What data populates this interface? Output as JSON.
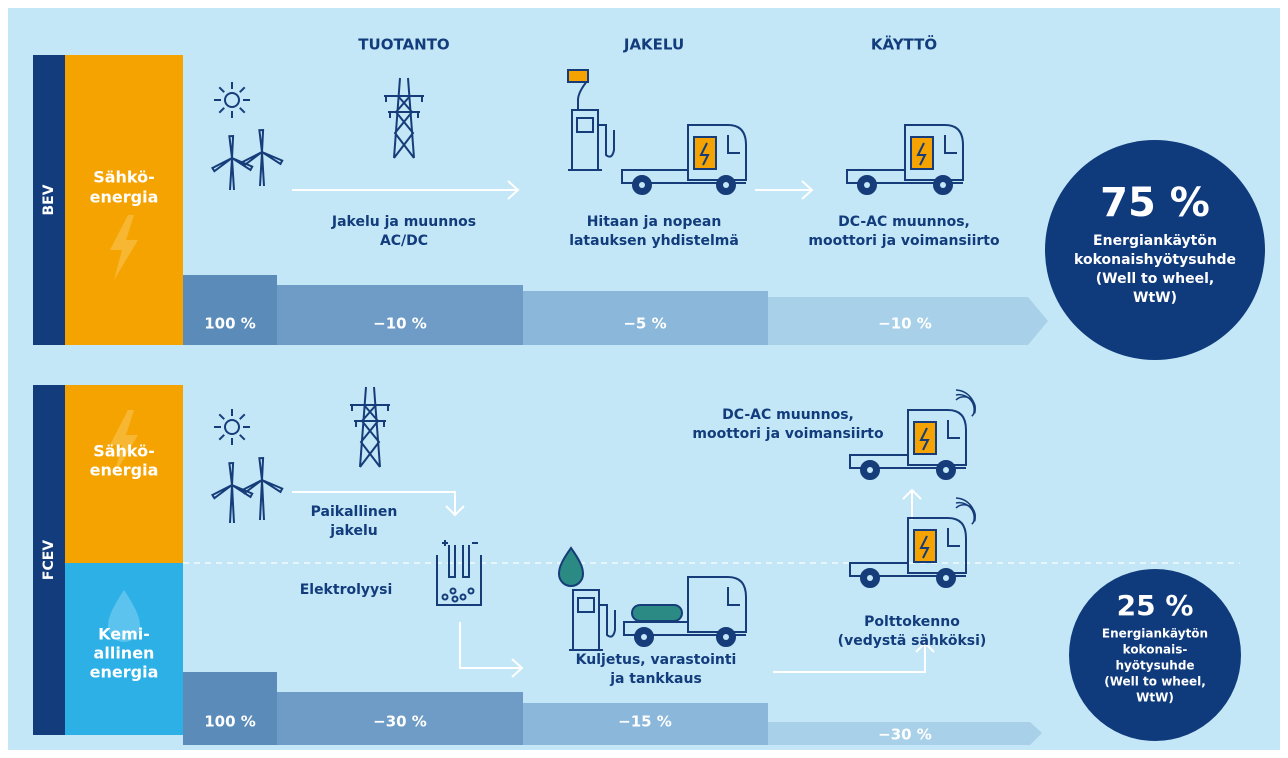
{
  "headers": [
    "TUOTANTO",
    "JAKELU",
    "KÄYTTÖ"
  ],
  "bev": {
    "label": "BEV",
    "source": [
      "Sähkö-",
      "energia"
    ],
    "captions": [
      [
        "Jakelu ja muunnos",
        "AC/DC"
      ],
      [
        "Hitaan ja nopean",
        "latauksen yhdistelmä"
      ],
      [
        "DC-AC muunnos,",
        "moottori ja voimansiirto"
      ]
    ],
    "bars": [
      "100 %",
      "−10 %",
      "−5 %",
      "−10 %"
    ],
    "result": {
      "value": "75 %",
      "text": [
        "Energiankäytön",
        "kokonaishyötysuhde",
        "(Well to wheel,",
        "WtW)"
      ]
    }
  },
  "fcev": {
    "label": "FCEV",
    "sources": [
      [
        "Sähkö-",
        "energia"
      ],
      [
        "Kemi-",
        "allinen",
        "energia"
      ]
    ],
    "captions": {
      "distribution": [
        "Paikallinen",
        "jakelu"
      ],
      "electrolysis": [
        "Elektrolyysi"
      ],
      "transport": [
        "Kuljetus, varastointi",
        "ja tankkaus"
      ],
      "fuelcell": [
        "Polttokenno",
        "(vedystä sähköksi)"
      ],
      "drive": [
        "DC-AC muunnos,",
        "moottori ja voimansiirto"
      ]
    },
    "bars": [
      "100 %",
      "−30 %",
      "−15 %",
      "−30 %"
    ],
    "result": {
      "value": "25 %",
      "text": [
        "Energiankäytön",
        "kokonais-",
        "hyötysuhde",
        "(Well to wheel,",
        "WtW)"
      ]
    }
  }
}
